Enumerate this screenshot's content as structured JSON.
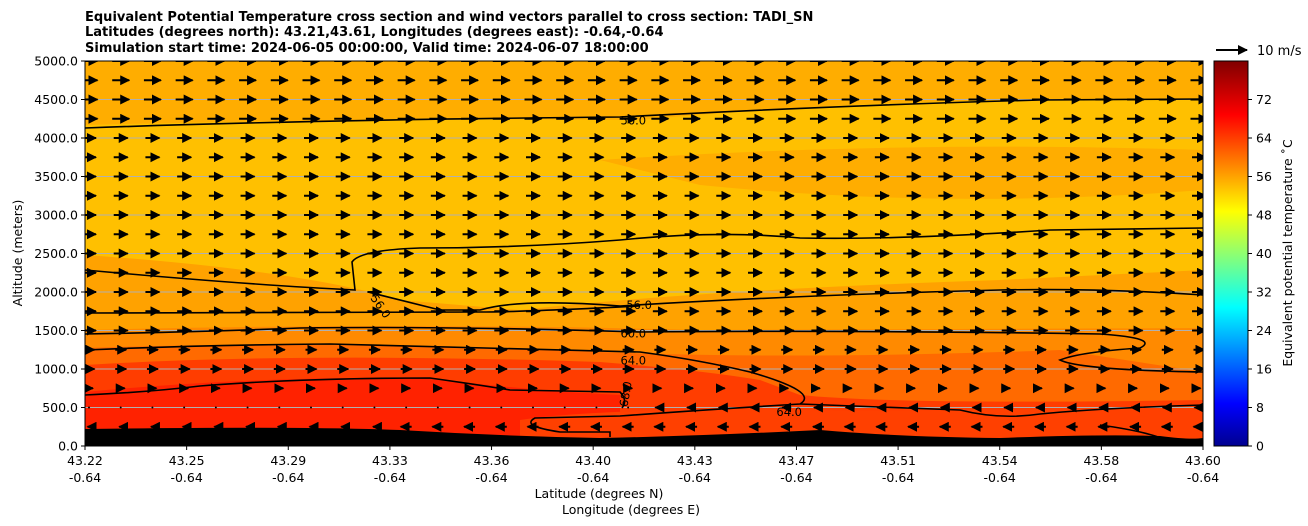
{
  "chart_data": {
    "type": "heatmap",
    "title_lines": [
      "Equivalent Potential Temperature cross section and wind vectors parallel to cross section: TADI_SN",
      "Latitudes (degrees north): 43.21,43.61, Longitudes (degrees east): -0.64,-0.64",
      "Simulation start time: 2024-06-05 00:00:00, Valid time: 2024-06-07 18:00:00"
    ],
    "xlabel_lines": [
      "Latitude (degrees N)",
      "Longitude (degrees E)"
    ],
    "ylabel": "Altitude (meters)",
    "x_ticks": [
      {
        "lat": "43.22",
        "lon": "-0.64"
      },
      {
        "lat": "43.25",
        "lon": "-0.64"
      },
      {
        "lat": "43.29",
        "lon": "-0.64"
      },
      {
        "lat": "43.33",
        "lon": "-0.64"
      },
      {
        "lat": "43.36",
        "lon": "-0.64"
      },
      {
        "lat": "43.40",
        "lon": "-0.64"
      },
      {
        "lat": "43.43",
        "lon": "-0.64"
      },
      {
        "lat": "43.47",
        "lon": "-0.64"
      },
      {
        "lat": "43.51",
        "lon": "-0.64"
      },
      {
        "lat": "43.54",
        "lon": "-0.64"
      },
      {
        "lat": "43.58",
        "lon": "-0.64"
      },
      {
        "lat": "43.60",
        "lon": "-0.64"
      }
    ],
    "y_ticks": [
      "0.0",
      "500.0",
      "1000.0",
      "1500.0",
      "2000.0",
      "2500.0",
      "3000.0",
      "3500.0",
      "4000.0",
      "4500.0",
      "5000.0"
    ],
    "ylim": [
      0,
      5000
    ],
    "grid": "horizontal",
    "colorbar": {
      "label": "Equivalent potential temperature ˚C",
      "ticks": [
        "0",
        "8",
        "16",
        "24",
        "32",
        "40",
        "48",
        "56",
        "64",
        "72"
      ],
      "range": [
        0,
        80
      ],
      "colormap": "jet"
    },
    "contour_labels": [
      {
        "text": "56.0",
        "x": 43.402,
        "y": 4230
      },
      {
        "text": "56.0",
        "x": 43.404,
        "y": 1830
      },
      {
        "text": "56.0",
        "x": 43.318,
        "y": 1950
      },
      {
        "text": "60.0",
        "x": 43.402,
        "y": 1460
      },
      {
        "text": "64.0",
        "x": 43.402,
        "y": 1110
      },
      {
        "text": "64.0",
        "x": 43.455,
        "y": 440
      },
      {
        "text": "68.0",
        "x": 43.403,
        "y": 510
      }
    ],
    "wind_key": {
      "label": "10 m/s"
    },
    "theta_e_by_level": [
      {
        "altitude": 100,
        "value": 70
      },
      {
        "altitude": 500,
        "value": 69
      },
      {
        "altitude": 1000,
        "value": 66
      },
      {
        "altitude": 1500,
        "value": 61
      },
      {
        "altitude": 2000,
        "value": 58
      },
      {
        "altitude": 3000,
        "value": 55
      },
      {
        "altitude": 3500,
        "value": 57
      },
      {
        "altitude": 4500,
        "value": 55
      }
    ],
    "colors": {
      "terrain": "#000000",
      "contour": "#000000",
      "grid": "#b0b0b0"
    }
  }
}
